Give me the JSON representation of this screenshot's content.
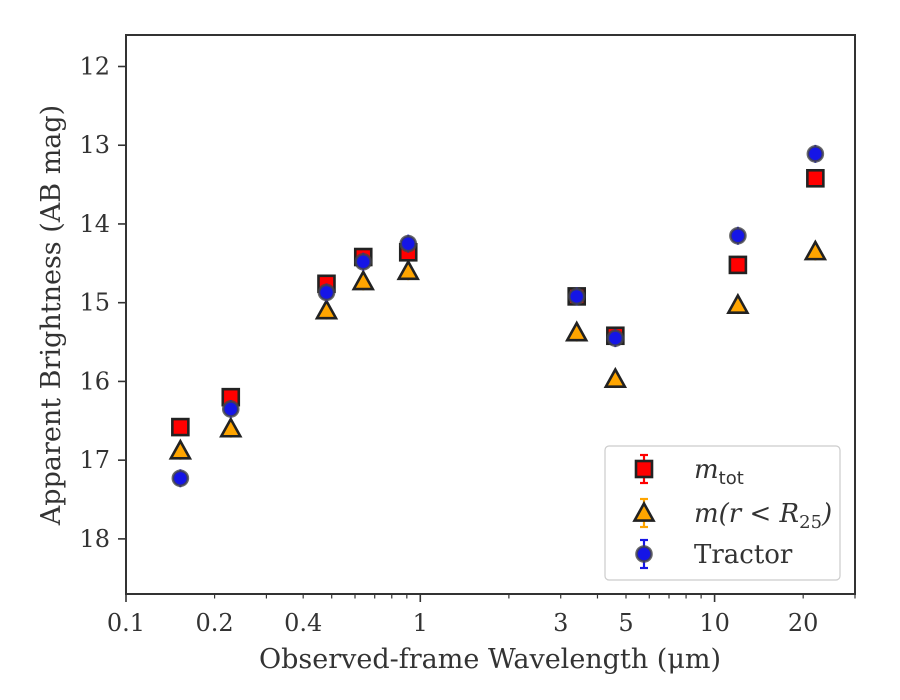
{
  "chart_data": {
    "type": "scatter",
    "xlabel": "Observed-frame Wavelength (μm)",
    "ylabel": "Apparent Brightness (AB mag)",
    "xscale": "log",
    "xlim": [
      0.1,
      30
    ],
    "ylim": [
      18.7,
      11.6
    ],
    "y_inverted": true,
    "x_ticks": [
      0.1,
      0.2,
      0.4,
      1,
      3,
      5,
      10,
      20
    ],
    "x_tick_labels": [
      "0.1",
      "0.2",
      "0.4",
      "1",
      "3",
      "5",
      "10",
      "20"
    ],
    "y_ticks": [
      12,
      13,
      14,
      15,
      16,
      17,
      18
    ],
    "y_tick_labels": [
      "12",
      "13",
      "14",
      "15",
      "16",
      "17",
      "18"
    ],
    "legend": {
      "placement": "lower-right"
    },
    "series": [
      {
        "name": "m_tot",
        "label_main": "m",
        "label_sub": "tot",
        "marker": "square",
        "color": "#ff0000",
        "edge_color": "#222222",
        "x": [
          0.153,
          0.227,
          0.48,
          0.64,
          0.91,
          3.4,
          4.6,
          12.0,
          22.0
        ],
        "y": [
          16.58,
          16.2,
          14.76,
          14.42,
          14.36,
          14.92,
          15.42,
          14.52,
          13.42
        ]
      },
      {
        "name": "m(r < R25)",
        "label_main": "m(r < R",
        "label_sub": "25",
        "label_tail": ")",
        "marker": "triangle",
        "color": "#ffa500",
        "edge_color": "#222222",
        "x": [
          0.153,
          0.227,
          0.48,
          0.64,
          0.91,
          3.4,
          4.6,
          12.0,
          22.0
        ],
        "y": [
          16.88,
          16.6,
          15.1,
          14.73,
          14.6,
          15.38,
          15.97,
          15.03,
          14.35
        ]
      },
      {
        "name": "Tractor",
        "label_main": "Tractor",
        "marker": "circle",
        "color": "#1515e6",
        "edge_color": "#444444",
        "x": [
          0.153,
          0.227,
          0.48,
          0.64,
          0.91,
          3.4,
          4.6,
          12.0,
          22.0
        ],
        "y": [
          17.23,
          16.35,
          14.87,
          14.48,
          14.25,
          14.92,
          15.45,
          14.15,
          13.11
        ]
      }
    ]
  }
}
